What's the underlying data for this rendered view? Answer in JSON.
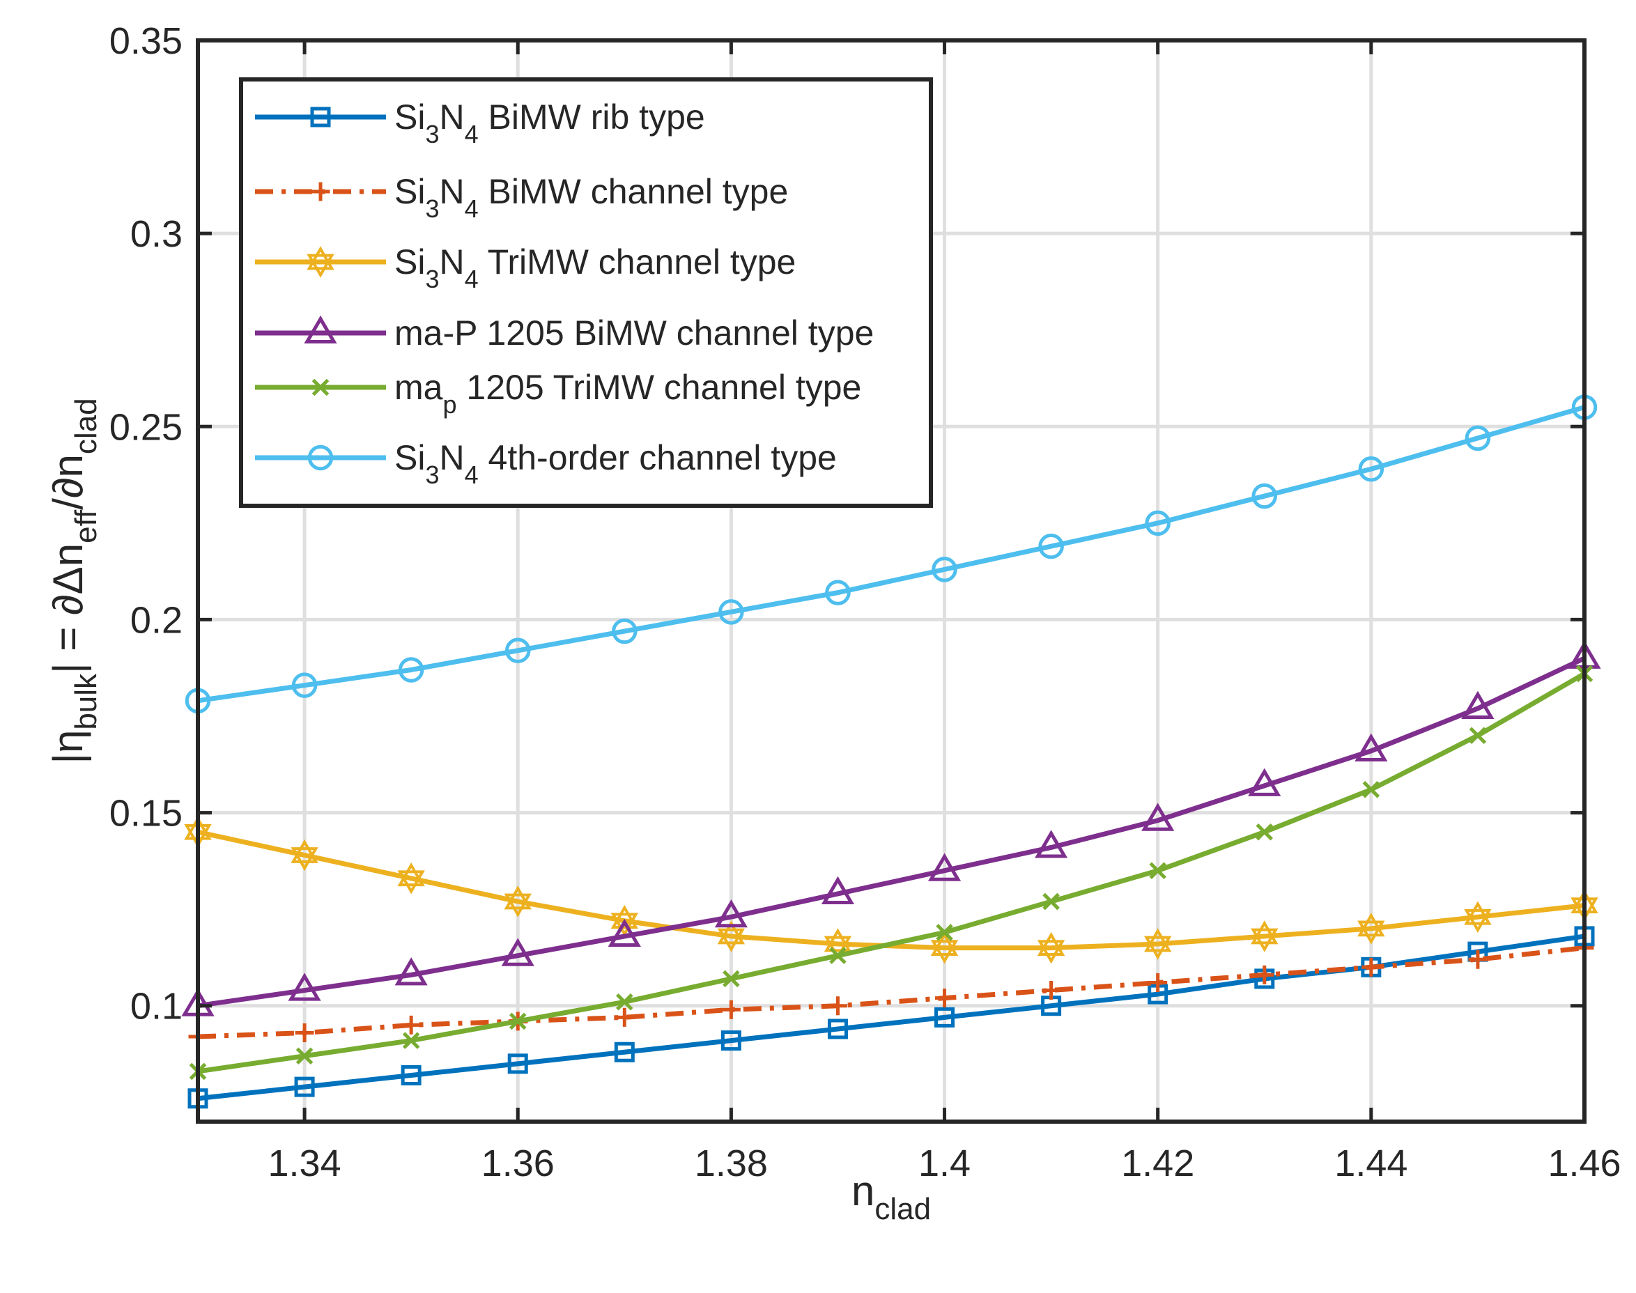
{
  "chart_data": {
    "type": "line",
    "xlabel": {
      "main": "n",
      "sub": "clad"
    },
    "ylabel": {
      "parts": [
        {
          "t": "|η"
        },
        {
          "t": "bulk",
          "sub": true
        },
        {
          "t": "| = ∂Δn"
        },
        {
          "t": "eff",
          "sub": true
        },
        {
          "t": "/∂n"
        },
        {
          "t": "clad",
          "sub": true
        }
      ]
    },
    "xlim": [
      1.33,
      1.46
    ],
    "ylim": [
      0.07,
      0.35
    ],
    "xticks": [
      1.34,
      1.36,
      1.38,
      1.4,
      1.42,
      1.44,
      1.46
    ],
    "xtick_labels": [
      "1.34",
      "1.36",
      "1.38",
      "1.4",
      "1.42",
      "1.44",
      "1.46"
    ],
    "yticks": [
      0.1,
      0.15,
      0.2,
      0.25,
      0.3,
      0.35
    ],
    "ytick_labels": [
      "0.1",
      "0.15",
      "0.2",
      "0.25",
      "0.3",
      "0.35"
    ],
    "grid": true,
    "legend_position": "top-left",
    "x": [
      1.33,
      1.34,
      1.35,
      1.36,
      1.37,
      1.38,
      1.39,
      1.4,
      1.41,
      1.42,
      1.43,
      1.44,
      1.45,
      1.46
    ],
    "series": [
      {
        "name": "Si3N4 BiMW rib type",
        "legend_parts": [
          {
            "t": "Si"
          },
          {
            "t": "3",
            "sub": true
          },
          {
            "t": "N"
          },
          {
            "t": "4",
            "sub": true
          },
          {
            "t": " BiMW rib type"
          }
        ],
        "color": "#0072BD",
        "marker": "square",
        "dash": "solid",
        "values": [
          0.076,
          0.079,
          0.082,
          0.085,
          0.088,
          0.091,
          0.094,
          0.097,
          0.1,
          0.103,
          0.107,
          0.11,
          0.114,
          0.118
        ]
      },
      {
        "name": "Si3N4 BiMW channel type",
        "legend_parts": [
          {
            "t": "Si"
          },
          {
            "t": "3",
            "sub": true
          },
          {
            "t": "N"
          },
          {
            "t": "4",
            "sub": true
          },
          {
            "t": " BiMW channel type"
          }
        ],
        "color": "#D95319",
        "marker": "plus",
        "dash": "dashdot",
        "values": [
          0.092,
          0.093,
          0.095,
          0.096,
          0.097,
          0.099,
          0.1,
          0.102,
          0.104,
          0.106,
          0.108,
          0.11,
          0.112,
          0.115
        ]
      },
      {
        "name": "Si3N4 TriMW channel type",
        "legend_parts": [
          {
            "t": "Si"
          },
          {
            "t": "3",
            "sub": true
          },
          {
            "t": "N"
          },
          {
            "t": "4",
            "sub": true
          },
          {
            "t": " TriMW channel type"
          }
        ],
        "color": "#EDB120",
        "marker": "hexagram",
        "dash": "solid",
        "values": [
          0.145,
          0.139,
          0.133,
          0.127,
          0.122,
          0.118,
          0.116,
          0.115,
          0.115,
          0.116,
          0.118,
          0.12,
          0.123,
          0.126
        ]
      },
      {
        "name": "ma-P 1205 BiMW channel type",
        "legend_parts": [
          {
            "t": "ma-P 1205 BiMW channel type"
          }
        ],
        "color": "#7E2F8E",
        "marker": "triangle",
        "dash": "solid",
        "values": [
          0.1,
          0.104,
          0.108,
          0.113,
          0.118,
          0.123,
          0.129,
          0.135,
          0.141,
          0.148,
          0.157,
          0.166,
          0.177,
          0.19
        ]
      },
      {
        "name": "map 1205 TriMW channel type",
        "legend_parts": [
          {
            "t": "ma"
          },
          {
            "t": "p",
            "sub": true
          },
          {
            "t": " 1205 TriMW channel type"
          }
        ],
        "color": "#77AC30",
        "marker": "x",
        "dash": "solid",
        "values": [
          0.083,
          0.087,
          0.091,
          0.096,
          0.101,
          0.107,
          0.113,
          0.119,
          0.127,
          0.135,
          0.145,
          0.156,
          0.17,
          0.186
        ]
      },
      {
        "name": "Si3N4 4th-order channel type",
        "legend_parts": [
          {
            "t": "Si"
          },
          {
            "t": "3",
            "sub": true
          },
          {
            "t": "N"
          },
          {
            "t": "4",
            "sub": true
          },
          {
            "t": " 4th-order channel type"
          }
        ],
        "color": "#4DBEEE",
        "marker": "circle",
        "dash": "solid",
        "values": [
          0.179,
          0.183,
          0.187,
          0.192,
          0.197,
          0.202,
          0.207,
          0.213,
          0.219,
          0.225,
          0.232,
          0.239,
          0.247,
          0.255
        ]
      }
    ]
  }
}
